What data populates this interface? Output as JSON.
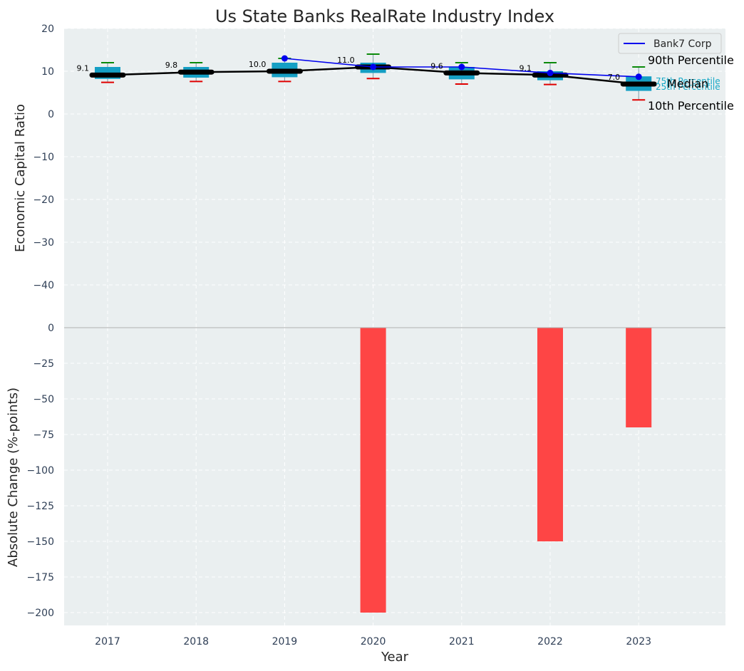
{
  "chart_data": [
    {
      "type": "box",
      "title": "Us State Banks RealRate Industry Index",
      "ylabel": "Economic Capital Ratio",
      "ylim": [
        -50,
        20
      ],
      "yticks": [
        20,
        10,
        0,
        -10,
        -20,
        -30,
        -40
      ],
      "categories": [
        "2017",
        "2018",
        "2019",
        "2020",
        "2021",
        "2022",
        "2023"
      ],
      "p10": [
        7.4,
        7.6,
        7.6,
        8.3,
        7.0,
        6.9,
        3.3
      ],
      "q1": [
        8.2,
        8.5,
        8.6,
        9.6,
        8.1,
        7.9,
        5.4
      ],
      "median": [
        9.1,
        9.8,
        10.0,
        11.0,
        9.6,
        9.1,
        7.0
      ],
      "q3": [
        11.0,
        11.0,
        12.0,
        12.0,
        11.0,
        10.0,
        8.8
      ],
      "p90": [
        12.0,
        12.0,
        13.0,
        14.0,
        12.0,
        12.0,
        11.0
      ],
      "median_labels": [
        "9.1",
        "9.8",
        "10.0",
        "11.0",
        "9.6",
        "9.1",
        "7.0"
      ],
      "bank_series": {
        "name": "Bank7 Corp",
        "values": [
          null,
          null,
          13.0,
          11.0,
          11.0,
          9.6,
          8.7
        ]
      },
      "legend": {
        "position": "top-right",
        "entries": [
          "Bank7 Corp"
        ]
      },
      "annotations": {
        "p90": "90th Percentile",
        "q3": "75th Percentile",
        "median": "Median",
        "q1": "25th Percentile",
        "p10": "10th Percentile"
      },
      "grid": true
    },
    {
      "type": "bar",
      "xlabel": "Year",
      "ylabel": "Absolute Change (%-points)",
      "ylim": [
        -210,
        0
      ],
      "yticks": [
        0,
        -25,
        -50,
        -75,
        -100,
        -125,
        -150,
        -175,
        -200
      ],
      "categories": [
        "2017",
        "2018",
        "2019",
        "2020",
        "2021",
        "2022",
        "2023"
      ],
      "values": [
        0,
        0,
        0,
        -200,
        0,
        -150,
        -70
      ],
      "grid": true
    }
  ],
  "colors": {
    "plot_bg": "#eaeff0",
    "box": "#159fc4",
    "median_line": "#000000",
    "whisker_top": "#0a8a0a",
    "whisker_bottom": "#e00000",
    "bank_line": "#0000ee",
    "bars": "#ff3b3b",
    "grid": "#ffffff"
  }
}
